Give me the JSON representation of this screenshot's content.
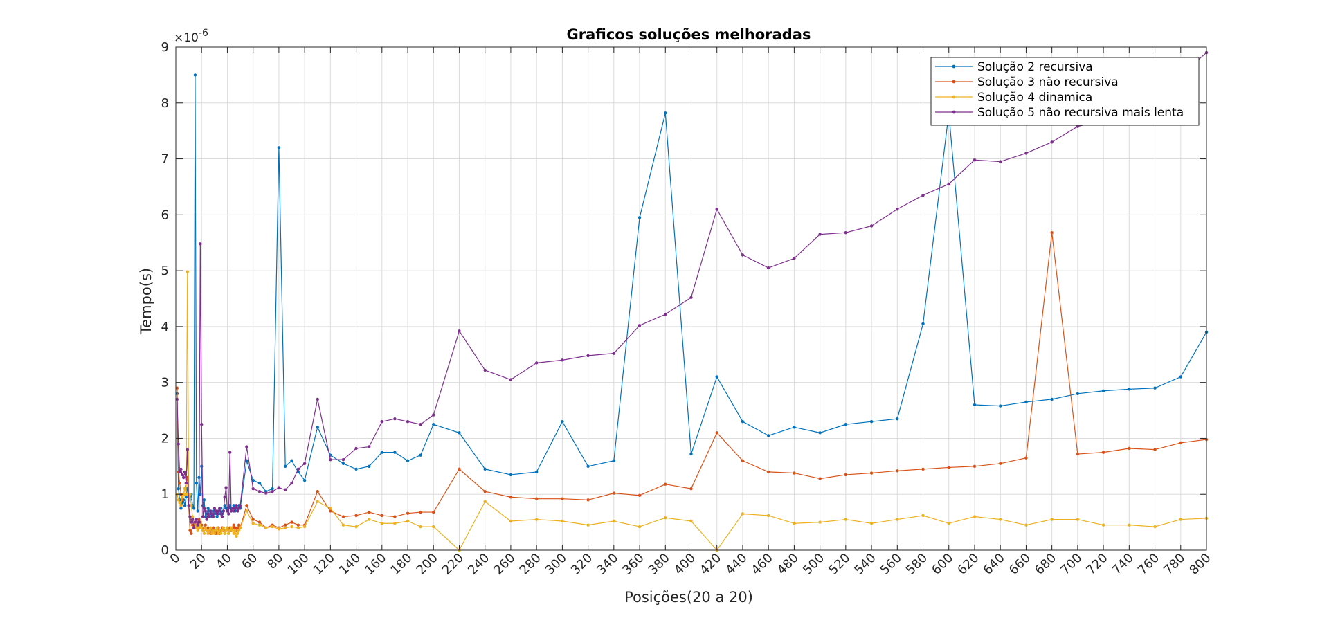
{
  "chart_data": {
    "type": "line",
    "title": "Graficos soluções melhoradas",
    "xlabel": "Posições(20 a 20)",
    "ylabel": "Tempo(s)",
    "y_exponent_label": "×10",
    "y_exponent_power": "-6",
    "xlim": [
      0,
      800
    ],
    "ylim": [
      0,
      9
    ],
    "grid": true,
    "legend_position": "top-right",
    "x_ticks": [
      0,
      20,
      40,
      60,
      80,
      100,
      120,
      140,
      160,
      180,
      200,
      220,
      240,
      260,
      280,
      300,
      320,
      340,
      360,
      380,
      400,
      420,
      440,
      460,
      480,
      500,
      520,
      540,
      560,
      580,
      600,
      620,
      640,
      660,
      680,
      700,
      720,
      740,
      760,
      780,
      800
    ],
    "y_ticks": [
      0,
      1,
      2,
      3,
      4,
      5,
      6,
      7,
      8,
      9
    ],
    "x": [
      1,
      2,
      3,
      4,
      5,
      6,
      7,
      8,
      9,
      10,
      11,
      12,
      13,
      14,
      15,
      16,
      17,
      18,
      19,
      20,
      21,
      22,
      23,
      24,
      25,
      26,
      27,
      28,
      29,
      30,
      31,
      32,
      33,
      34,
      35,
      36,
      37,
      38,
      39,
      40,
      41,
      42,
      43,
      44,
      45,
      46,
      47,
      48,
      49,
      50,
      55,
      60,
      65,
      70,
      75,
      80,
      85,
      90,
      95,
      100,
      110,
      120,
      130,
      140,
      150,
      160,
      170,
      180,
      190,
      200,
      220,
      240,
      260,
      280,
      300,
      320,
      340,
      360,
      380,
      400,
      420,
      440,
      460,
      480,
      500,
      520,
      540,
      560,
      580,
      600,
      620,
      640,
      660,
      680,
      700,
      720,
      740,
      760,
      780,
      800
    ],
    "series": [
      {
        "name": "Solução 2 recursiva",
        "color": "#0072BD",
        "values": [
          2.8,
          1.1,
          0.9,
          0.75,
          0.85,
          0.9,
          0.8,
          0.95,
          1.1,
          1.0,
          0.9,
          1.0,
          0.8,
          0.75,
          8.5,
          1.2,
          0.7,
          1.3,
          1.0,
          1.5,
          0.8,
          0.9,
          0.6,
          0.65,
          0.75,
          0.7,
          0.65,
          0.6,
          0.7,
          0.65,
          0.7,
          0.6,
          0.65,
          0.7,
          0.75,
          0.65,
          0.7,
          0.8,
          0.75,
          0.7,
          0.75,
          0.8,
          0.7,
          0.75,
          0.8,
          0.7,
          0.75,
          0.7,
          0.8,
          0.75,
          1.6,
          1.25,
          1.2,
          1.05,
          1.1,
          7.2,
          1.5,
          1.6,
          1.4,
          1.25,
          2.2,
          1.7,
          1.55,
          1.45,
          1.5,
          1.75,
          1.75,
          1.6,
          1.7,
          2.25,
          2.1,
          1.45,
          1.35,
          1.4,
          2.3,
          1.5,
          1.6,
          5.95,
          7.82,
          1.72,
          3.1,
          2.3,
          2.05,
          2.2,
          2.1,
          2.25,
          2.3,
          2.35,
          4.05,
          7.82,
          2.6,
          2.58,
          2.65,
          2.7,
          2.8,
          2.85,
          2.88,
          2.9,
          3.1,
          3.9
        ]
      },
      {
        "name": "Solução 3 não recursiva",
        "color": "#D95319",
        "values": [
          2.9,
          1.4,
          1.2,
          1.0,
          0.9,
          1.0,
          1.1,
          1.2,
          1.3,
          0.8,
          0.35,
          0.3,
          0.45,
          0.5,
          0.4,
          0.45,
          0.5,
          0.55,
          0.5,
          0.45,
          0.35,
          0.4,
          0.45,
          0.35,
          0.4,
          0.35,
          0.3,
          0.35,
          0.4,
          0.35,
          0.3,
          0.35,
          0.4,
          0.3,
          0.35,
          0.4,
          0.35,
          0.3,
          0.35,
          0.4,
          0.35,
          0.4,
          0.35,
          0.4,
          0.45,
          0.4,
          0.35,
          0.4,
          0.45,
          0.4,
          0.8,
          0.55,
          0.5,
          0.4,
          0.45,
          0.4,
          0.45,
          0.5,
          0.45,
          0.45,
          1.05,
          0.7,
          0.6,
          0.62,
          0.68,
          0.62,
          0.6,
          0.66,
          0.68,
          0.68,
          1.45,
          1.05,
          0.95,
          0.92,
          0.92,
          0.9,
          1.02,
          0.98,
          1.18,
          1.1,
          2.1,
          1.6,
          1.4,
          1.38,
          1.28,
          1.35,
          1.38,
          1.42,
          1.45,
          1.48,
          1.5,
          1.55,
          1.65,
          5.68,
          1.72,
          1.75,
          1.82,
          1.8,
          1.92,
          1.98
        ]
      },
      {
        "name": "Solução 4 dinamica",
        "color": "#EDB120",
        "values": [
          1.0,
          0.9,
          0.85,
          0.8,
          0.95,
          1.0,
          1.1,
          1.0,
          4.98,
          0.9,
          1.0,
          0.8,
          0.6,
          0.5,
          0.45,
          0.4,
          0.35,
          0.4,
          0.45,
          0.4,
          0.35,
          0.3,
          0.4,
          0.35,
          0.3,
          0.35,
          0.4,
          0.3,
          0.35,
          0.3,
          0.35,
          0.4,
          0.3,
          0.35,
          0.3,
          0.35,
          0.4,
          0.3,
          0.35,
          0.4,
          0.3,
          0.35,
          0.4,
          0.35,
          0.3,
          0.35,
          0.25,
          0.3,
          0.35,
          0.4,
          0.7,
          0.48,
          0.45,
          0.4,
          0.42,
          0.38,
          0.4,
          0.42,
          0.4,
          0.42,
          0.87,
          0.75,
          0.45,
          0.42,
          0.55,
          0.48,
          0.48,
          0.52,
          0.42,
          0.42,
          0.0,
          0.87,
          0.52,
          0.55,
          0.52,
          0.45,
          0.52,
          0.42,
          0.58,
          0.52,
          0.0,
          0.65,
          0.62,
          0.48,
          0.5,
          0.55,
          0.48,
          0.55,
          0.62,
          0.48,
          0.6,
          0.55,
          0.45,
          0.55,
          0.55,
          0.45,
          0.45,
          0.42,
          0.55,
          0.57
        ]
      },
      {
        "name": "Solução 5 não recursiva mais lenta",
        "color": "#7E2F8E",
        "values": [
          2.7,
          1.9,
          1.4,
          1.45,
          1.35,
          1.3,
          1.4,
          1.2,
          1.8,
          0.8,
          0.6,
          0.5,
          0.55,
          0.4,
          0.5,
          0.55,
          0.45,
          0.5,
          5.48,
          2.25,
          0.6,
          0.75,
          0.7,
          0.55,
          0.65,
          0.6,
          0.7,
          0.65,
          0.6,
          0.75,
          0.7,
          0.65,
          0.7,
          0.75,
          0.65,
          0.6,
          0.7,
          0.95,
          1.12,
          0.7,
          0.65,
          1.75,
          0.7,
          0.75,
          0.7,
          0.75,
          0.8,
          0.7,
          0.75,
          0.8,
          1.85,
          1.1,
          1.05,
          1.02,
          1.05,
          1.12,
          1.08,
          1.2,
          1.45,
          1.55,
          2.7,
          1.62,
          1.62,
          1.82,
          1.85,
          2.3,
          2.35,
          2.3,
          2.25,
          2.42,
          3.92,
          3.22,
          3.05,
          3.35,
          3.4,
          3.48,
          3.52,
          4.02,
          4.22,
          4.52,
          6.1,
          5.28,
          5.05,
          5.22,
          5.65,
          5.68,
          5.8,
          6.1,
          6.35,
          6.55,
          6.98,
          6.95,
          7.1,
          7.3,
          7.58,
          7.68,
          7.88,
          8.2,
          8.5,
          8.9
        ]
      }
    ]
  }
}
